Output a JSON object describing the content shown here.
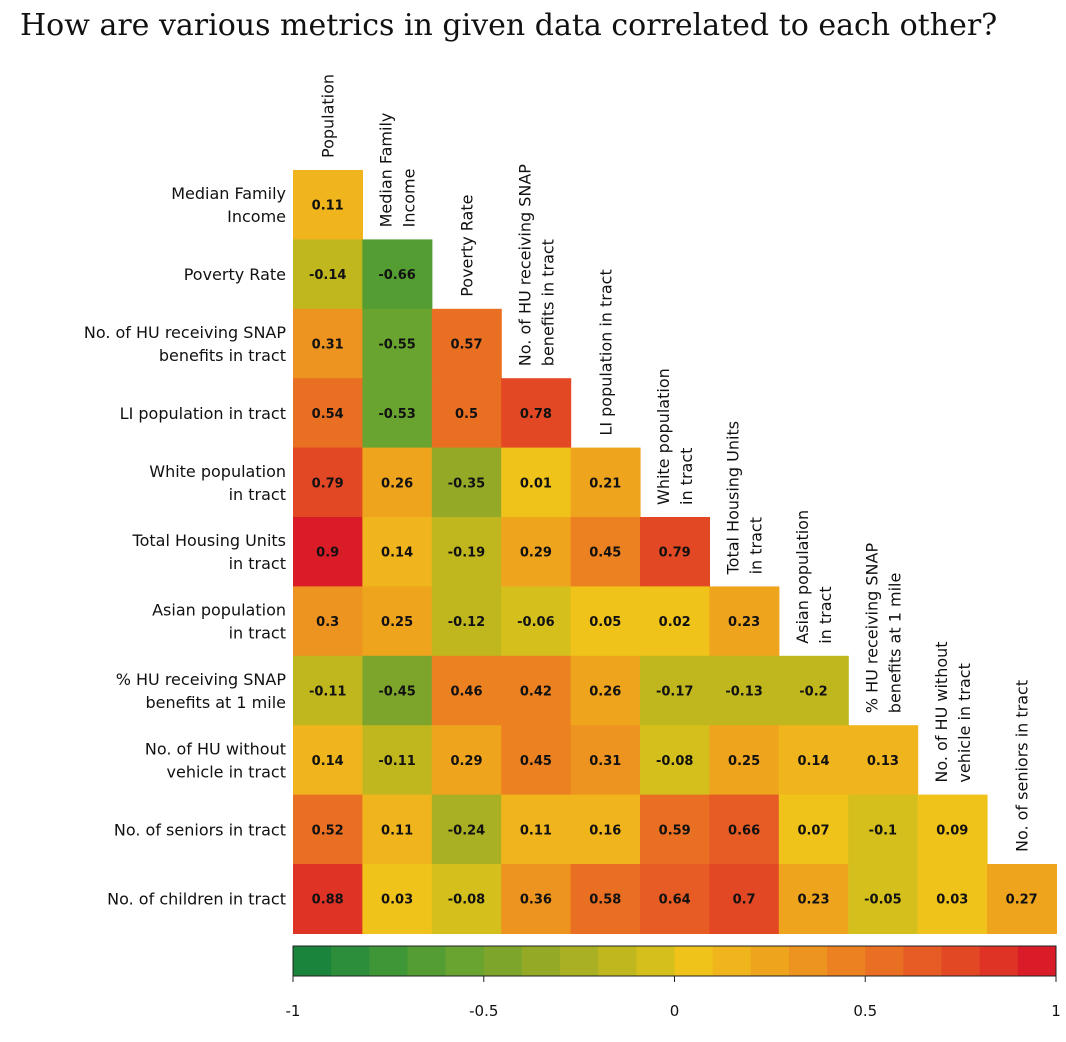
{
  "chart_data": {
    "type": "heatmap",
    "title": "How are various metrics in given data correlated to each other?",
    "columns": [
      [
        "Population"
      ],
      [
        "Median Family",
        "Income"
      ],
      [
        "Poverty Rate"
      ],
      [
        "No. of HU receiving SNAP",
        "benefits in tract"
      ],
      [
        "LI population in tract"
      ],
      [
        "White population",
        "in tract"
      ],
      [
        "Total Housing Units",
        "in tract"
      ],
      [
        "Asian population",
        "in tract"
      ],
      [
        "% HU receiving SNAP",
        "benefits at 1 mile"
      ],
      [
        "No. of HU without",
        "vehicle in tract"
      ],
      [
        "No. of seniors in tract"
      ]
    ],
    "rows": [
      [
        "Median Family",
        "Income"
      ],
      [
        "Poverty Rate"
      ],
      [
        "No. of HU receiving SNAP",
        "benefits in tract"
      ],
      [
        "LI population in tract"
      ],
      [
        "White population",
        "in tract"
      ],
      [
        "Total Housing Units",
        "in tract"
      ],
      [
        "Asian population",
        "in tract"
      ],
      [
        "% HU receiving SNAP",
        "benefits at 1 mile"
      ],
      [
        "No. of HU without",
        "vehicle in tract"
      ],
      [
        "No. of seniors in tract"
      ],
      [
        "No. of children in tract"
      ]
    ],
    "values": [
      [
        0.11
      ],
      [
        -0.14,
        -0.66
      ],
      [
        0.31,
        -0.55,
        0.57
      ],
      [
        0.54,
        -0.53,
        0.5,
        0.78
      ],
      [
        0.79,
        0.26,
        -0.35,
        0.01,
        0.21
      ],
      [
        0.9,
        0.14,
        -0.19,
        0.29,
        0.45,
        0.79
      ],
      [
        0.3,
        0.25,
        -0.12,
        -0.06,
        0.05,
        0.02,
        0.23
      ],
      [
        -0.11,
        -0.45,
        0.46,
        0.42,
        0.26,
        -0.17,
        -0.13,
        -0.2
      ],
      [
        0.14,
        -0.11,
        0.29,
        0.45,
        0.31,
        -0.08,
        0.25,
        0.14,
        0.13
      ],
      [
        0.52,
        0.11,
        -0.24,
        0.11,
        0.16,
        0.59,
        0.66,
        0.07,
        -0.1,
        0.09
      ],
      [
        0.88,
        0.03,
        -0.08,
        0.36,
        0.58,
        0.64,
        0.7,
        0.23,
        -0.05,
        0.03,
        0.27
      ]
    ],
    "colorbar": {
      "range": [
        -1,
        1
      ],
      "ticks": [
        -1,
        -0.5,
        0,
        0.5,
        1
      ],
      "tick_labels": [
        "-1",
        "-0.5",
        "0",
        "0.5",
        "1"
      ],
      "colors": [
        "#1a843c",
        "#2c8d3a",
        "#3f9637",
        "#539d33",
        "#68a42f",
        "#7ea52b",
        "#94aa27",
        "#aab023",
        "#c0b71f",
        "#d4bf1c",
        "#f0c31a",
        "#f0b41c",
        "#efa41e",
        "#ed9320",
        "#eb8121",
        "#e96f22",
        "#e65c24",
        "#e34825",
        "#df3326",
        "#da1c28"
      ]
    }
  }
}
